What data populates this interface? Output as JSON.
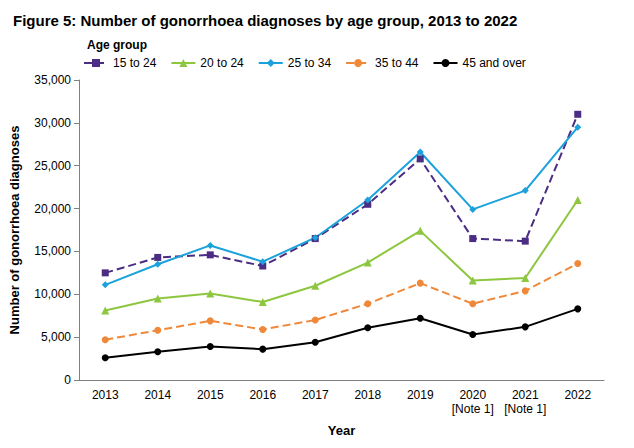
{
  "chart_data": {
    "type": "line",
    "title": "Figure 5: Number of gonorrhoea diagnoses by age group, 2013 to 2022",
    "legend_title": "Age group",
    "x_label": "Year",
    "y_label": "Number of gonorrhoea diagnoses",
    "categories": [
      "2013",
      "2014",
      "2015",
      "2016",
      "2017",
      "2018",
      "2019",
      "2020\n[Note 1]",
      "2021\n[Note 1]",
      "2022"
    ],
    "series": [
      {
        "name": "15 to 24",
        "color": "#4b2d83",
        "marker": "square",
        "line_style": "dashed",
        "values": [
          12500,
          14300,
          14600,
          13300,
          16500,
          20500,
          25800,
          16500,
          16200,
          31000
        ]
      },
      {
        "name": "20 to 24",
        "color": "#8dc63f",
        "marker": "triangle",
        "line_style": "solid",
        "values": [
          8100,
          9500,
          10100,
          9100,
          11000,
          13700,
          17400,
          11600,
          11900,
          21000
        ]
      },
      {
        "name": "25 to 34",
        "color": "#1ba1dc",
        "marker": "diamond",
        "line_style": "solid",
        "values": [
          11100,
          13500,
          15700,
          13800,
          16600,
          21000,
          26600,
          19900,
          22100,
          29500
        ]
      },
      {
        "name": "35 to 44",
        "color": "#f0883a",
        "marker": "circle",
        "line_style": "dashed",
        "values": [
          4700,
          5800,
          6900,
          5900,
          7000,
          8900,
          11300,
          8900,
          10400,
          13600
        ]
      },
      {
        "name": "45 and over",
        "color": "#000000",
        "marker": "circle",
        "line_style": "solid",
        "values": [
          2600,
          3300,
          3900,
          3600,
          4400,
          6100,
          7200,
          5300,
          6200,
          8300
        ]
      }
    ],
    "ylim": [
      0,
      35000
    ],
    "yticks": [
      0,
      {
        "value": 5000,
        "label": "5,000"
      },
      {
        "value": 10000,
        "label": "10,000"
      },
      {
        "value": 15000,
        "label": "15,000"
      },
      {
        "value": 20000,
        "label": "20,000"
      },
      {
        "value": 25000,
        "label": "25,000"
      },
      {
        "value": 30000,
        "label": "30,000"
      },
      {
        "value": 35000,
        "label": "35,000"
      }
    ],
    "grid": false,
    "legend": "top-left"
  }
}
